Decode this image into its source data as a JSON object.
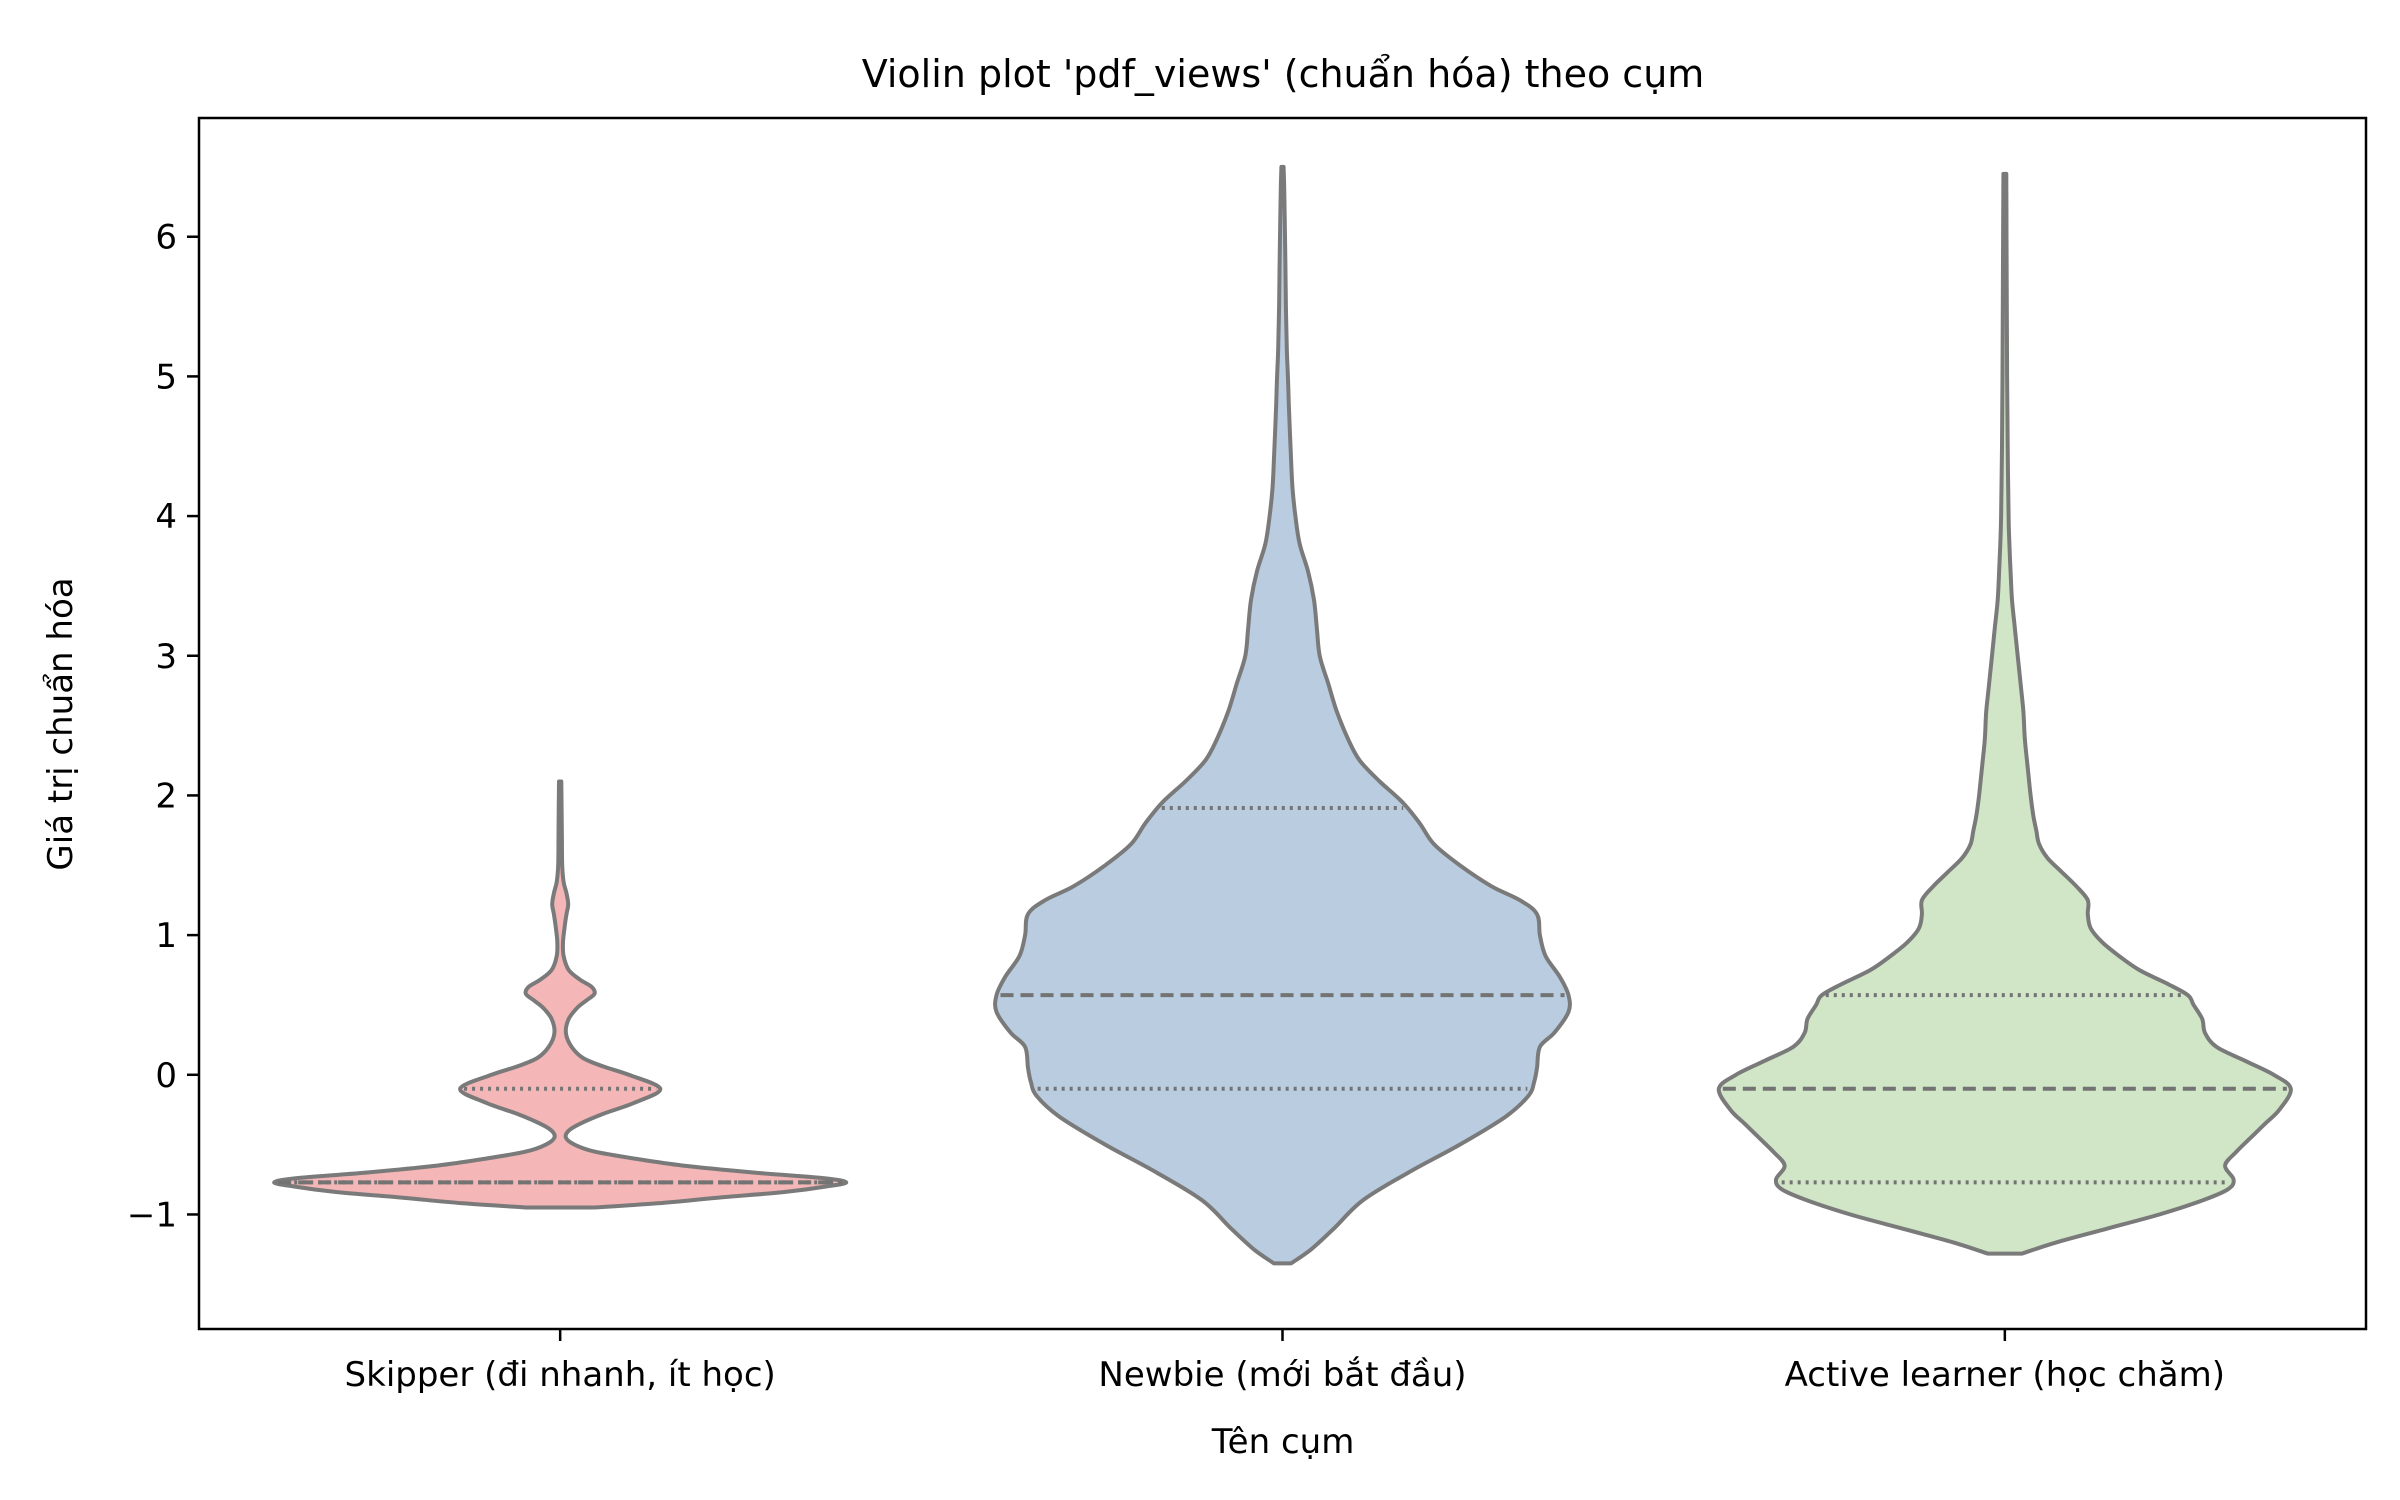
{
  "chart_data": {
    "type": "violin",
    "title": "Violin plot 'pdf_views' (chuẩn hóa) theo cụm",
    "xlabel": "Tên cụm",
    "ylabel": "Giá trị chuẩn hóa",
    "ylim": [
      -1.82,
      6.85
    ],
    "yticks": [
      -1,
      0,
      1,
      2,
      3,
      4,
      5,
      6
    ],
    "ytick_labels": [
      "−1",
      "0",
      "1",
      "2",
      "3",
      "4",
      "5",
      "6"
    ],
    "categories": [
      "Skipper (đi nhanh, ít học)",
      "Newbie (mới bắt đầu)",
      "Active learner (học chăm)"
    ],
    "grid": false,
    "legend": "none",
    "series": [
      {
        "category": "Skipper (đi nhanh, ít học)",
        "color": "#f4b6b6",
        "quartiles": {
          "q1": -0.77,
          "median": -0.77,
          "q3": -0.1
        },
        "density": [
          [
            -0.95,
            0.12
          ],
          [
            -0.92,
            0.34
          ],
          [
            -0.88,
            0.55
          ],
          [
            -0.84,
            0.78
          ],
          [
            -0.8,
            0.93
          ],
          [
            -0.77,
            1.0
          ],
          [
            -0.74,
            0.92
          ],
          [
            -0.7,
            0.68
          ],
          [
            -0.65,
            0.43
          ],
          [
            -0.6,
            0.26
          ],
          [
            -0.55,
            0.12
          ],
          [
            -0.5,
            0.05
          ],
          [
            -0.45,
            0.02
          ],
          [
            -0.4,
            0.03
          ],
          [
            -0.35,
            0.07
          ],
          [
            -0.28,
            0.15
          ],
          [
            -0.2,
            0.26
          ],
          [
            -0.1,
            0.35
          ],
          [
            0.0,
            0.24
          ],
          [
            0.06,
            0.15
          ],
          [
            0.12,
            0.08
          ],
          [
            0.2,
            0.04
          ],
          [
            0.3,
            0.02
          ],
          [
            0.4,
            0.03
          ],
          [
            0.48,
            0.06
          ],
          [
            0.53,
            0.09
          ],
          [
            0.58,
            0.12
          ],
          [
            0.63,
            0.11
          ],
          [
            0.68,
            0.07
          ],
          [
            0.75,
            0.03
          ],
          [
            0.85,
            0.012
          ],
          [
            0.95,
            0.01
          ],
          [
            1.05,
            0.015
          ],
          [
            1.15,
            0.022
          ],
          [
            1.22,
            0.028
          ],
          [
            1.3,
            0.022
          ],
          [
            1.38,
            0.012
          ],
          [
            1.5,
            0.007
          ],
          [
            1.7,
            0.006
          ],
          [
            1.9,
            0.005
          ],
          [
            2.1,
            0.004
          ]
        ]
      },
      {
        "category": "Newbie (mới bắt đầu)",
        "color": "#b9cce0",
        "quartiles": {
          "q1": -0.1,
          "median": 0.57,
          "q3": 1.91
        },
        "density": [
          [
            -1.35,
            0.03
          ],
          [
            -1.25,
            0.1
          ],
          [
            -1.1,
            0.18
          ],
          [
            -0.9,
            0.28
          ],
          [
            -0.7,
            0.44
          ],
          [
            -0.5,
            0.62
          ],
          [
            -0.3,
            0.78
          ],
          [
            -0.15,
            0.86
          ],
          [
            -0.05,
            0.88
          ],
          [
            0.05,
            0.89
          ],
          [
            0.2,
            0.9
          ],
          [
            0.3,
            0.95
          ],
          [
            0.45,
            1.0
          ],
          [
            0.57,
            1.0
          ],
          [
            0.7,
            0.97
          ],
          [
            0.85,
            0.92
          ],
          [
            1.0,
            0.9
          ],
          [
            1.15,
            0.89
          ],
          [
            1.25,
            0.83
          ],
          [
            1.35,
            0.73
          ],
          [
            1.5,
            0.62
          ],
          [
            1.65,
            0.53
          ],
          [
            1.8,
            0.48
          ],
          [
            1.95,
            0.42
          ],
          [
            2.1,
            0.34
          ],
          [
            2.25,
            0.27
          ],
          [
            2.4,
            0.23
          ],
          [
            2.6,
            0.19
          ],
          [
            2.8,
            0.16
          ],
          [
            3.0,
            0.13
          ],
          [
            3.2,
            0.12
          ],
          [
            3.4,
            0.11
          ],
          [
            3.6,
            0.09
          ],
          [
            3.8,
            0.06
          ],
          [
            4.0,
            0.045
          ],
          [
            4.2,
            0.035
          ],
          [
            4.4,
            0.03
          ],
          [
            4.6,
            0.026
          ],
          [
            4.8,
            0.022
          ],
          [
            5.0,
            0.019
          ],
          [
            5.2,
            0.015
          ],
          [
            5.5,
            0.012
          ],
          [
            5.8,
            0.01
          ],
          [
            6.1,
            0.008
          ],
          [
            6.35,
            0.006
          ],
          [
            6.5,
            0.004
          ]
        ]
      },
      {
        "category": "Active learner (học chăm)",
        "color": "#d0e6c7",
        "quartiles": {
          "q1": -0.77,
          "median": -0.1,
          "q3": 0.57
        },
        "density": [
          [
            -1.28,
            0.06
          ],
          [
            -1.2,
            0.18
          ],
          [
            -1.1,
            0.36
          ],
          [
            -1.0,
            0.54
          ],
          [
            -0.9,
            0.69
          ],
          [
            -0.82,
            0.78
          ],
          [
            -0.75,
            0.8
          ],
          [
            -0.65,
            0.77
          ],
          [
            -0.55,
            0.81
          ],
          [
            -0.45,
            0.86
          ],
          [
            -0.35,
            0.91
          ],
          [
            -0.25,
            0.96
          ],
          [
            -0.1,
            1.0
          ],
          [
            0.0,
            0.94
          ],
          [
            0.1,
            0.84
          ],
          [
            0.2,
            0.74
          ],
          [
            0.3,
            0.7
          ],
          [
            0.4,
            0.69
          ],
          [
            0.5,
            0.66
          ],
          [
            0.57,
            0.64
          ],
          [
            0.65,
            0.57
          ],
          [
            0.75,
            0.47
          ],
          [
            0.85,
            0.4
          ],
          [
            0.95,
            0.34
          ],
          [
            1.05,
            0.3
          ],
          [
            1.15,
            0.29
          ],
          [
            1.25,
            0.29
          ],
          [
            1.35,
            0.25
          ],
          [
            1.45,
            0.2
          ],
          [
            1.55,
            0.15
          ],
          [
            1.65,
            0.12
          ],
          [
            1.75,
            0.11
          ],
          [
            1.85,
            0.1
          ],
          [
            2.0,
            0.09
          ],
          [
            2.2,
            0.08
          ],
          [
            2.4,
            0.07
          ],
          [
            2.6,
            0.065
          ],
          [
            2.8,
            0.055
          ],
          [
            3.0,
            0.045
          ],
          [
            3.2,
            0.035
          ],
          [
            3.4,
            0.025
          ],
          [
            3.6,
            0.02
          ],
          [
            3.8,
            0.016
          ],
          [
            4.0,
            0.013
          ],
          [
            4.5,
            0.01
          ],
          [
            5.0,
            0.008
          ],
          [
            5.5,
            0.007
          ],
          [
            6.0,
            0.006
          ],
          [
            6.45,
            0.005
          ]
        ]
      }
    ]
  }
}
